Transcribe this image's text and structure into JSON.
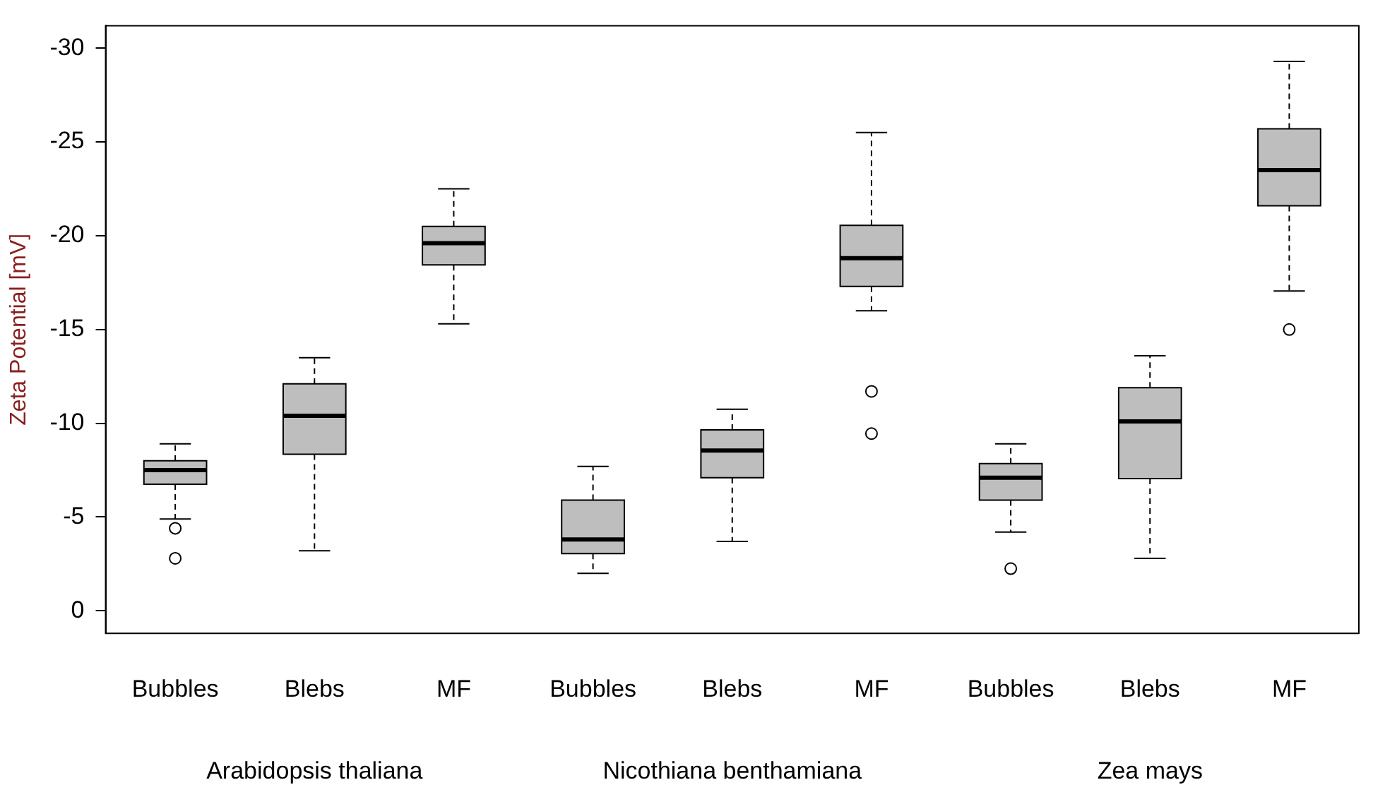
{
  "chart_data": {
    "type": "box",
    "ylabel": "Zeta Potential [mV]",
    "categories": [
      "Bubbles",
      "Blebs",
      "MF",
      "Bubbles",
      "Blebs",
      "MF",
      "Bubbles",
      "Blebs",
      "MF"
    ],
    "color": "#bebebe",
    "boxes": [
      {
        "low": -8.9,
        "q1": -8.0,
        "median": -7.5,
        "q3": -6.75,
        "high": -4.9,
        "outliers": [
          -4.4,
          -2.8
        ]
      },
      {
        "low": -13.5,
        "q1": -12.1,
        "median": -10.4,
        "q3": -8.35,
        "high": -3.2
      },
      {
        "low": -22.5,
        "q1": -20.5,
        "median": -19.6,
        "q3": -18.45,
        "high": -15.3
      },
      {
        "low": -7.7,
        "q1": -5.9,
        "median": -3.8,
        "q3": -3.05,
        "high": -2.0
      },
      {
        "low": -10.75,
        "q1": -9.65,
        "median": -8.55,
        "q3": -7.1,
        "high": -3.7
      },
      {
        "low": -25.5,
        "q1": -20.55,
        "median": -18.8,
        "q3": -17.3,
        "high": -16.0,
        "outliers": [
          -11.7,
          -9.45
        ]
      },
      {
        "low": -8.9,
        "q1": -7.85,
        "median": -7.1,
        "q3": -5.9,
        "high": -4.2,
        "outliers": [
          -2.25
        ]
      },
      {
        "low": -13.6,
        "q1": -11.9,
        "median": -10.1,
        "q3": -7.05,
        "high": -2.8
      },
      {
        "low": -29.3,
        "q1": -25.7,
        "median": -23.5,
        "q3": -21.6,
        "high": -17.05,
        "outliers": [
          -15.0
        ]
      }
    ],
    "ylim": [
      1.2,
      -31.2
    ],
    "yticks": [
      0,
      -5,
      -10,
      -15,
      -20,
      -25,
      -30
    ],
    "annotations": [
      "Arabidopsis thaliana",
      "Nicothiana benthamiana",
      "Zea mays"
    ]
  }
}
